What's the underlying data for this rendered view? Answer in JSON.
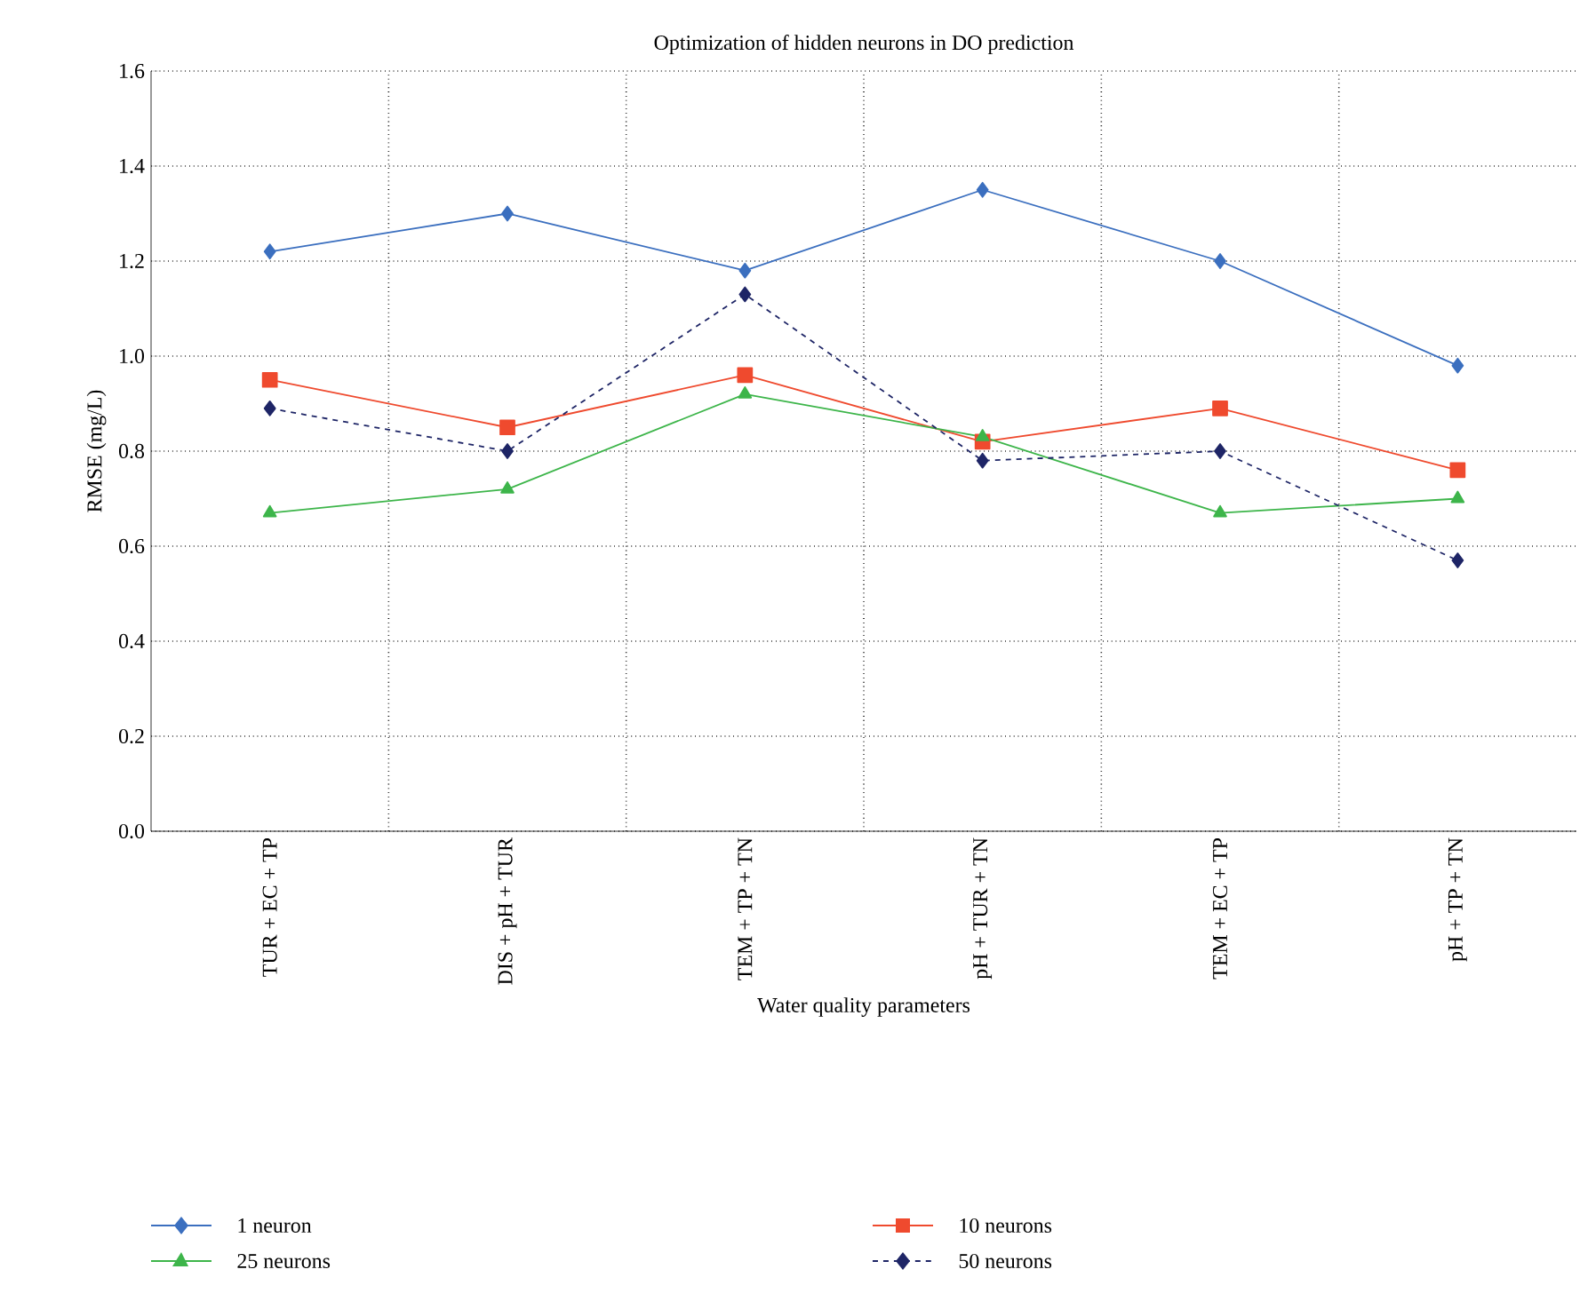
{
  "chart_data": {
    "type": "line",
    "title": "Optimization of hidden neurons in DO prediction",
    "xlabel": "Water quality parameters",
    "ylabel": "RMSE (mg/L)",
    "categories": [
      "TUR + EC + TP",
      "DIS + pH + TUR",
      "TEM + TP + TN",
      "pH + TUR + TN",
      "TEM + EC + TP",
      "pH + TP + TN"
    ],
    "series": [
      {
        "name": "1 neuron",
        "color": "#3b6fbf",
        "marker": "diamond",
        "line_style": "solid",
        "values": [
          1.22,
          1.3,
          1.18,
          1.35,
          1.2,
          0.98
        ]
      },
      {
        "name": "10 neurons",
        "color": "#ef4a2e",
        "marker": "square",
        "line_style": "solid",
        "values": [
          0.95,
          0.85,
          0.96,
          0.82,
          0.89,
          0.76
        ]
      },
      {
        "name": "25 neurons",
        "color": "#3db54a",
        "marker": "triangle",
        "line_style": "solid",
        "values": [
          0.67,
          0.72,
          0.92,
          0.83,
          0.67,
          0.7
        ]
      },
      {
        "name": "50 neurons",
        "color": "#1e2566",
        "marker": "diamond",
        "line_style": "dashed",
        "values": [
          0.89,
          0.8,
          1.13,
          0.78,
          0.8,
          0.57
        ]
      }
    ],
    "ylim": [
      0,
      1.6
    ],
    "yticks": [
      {
        "value": 0,
        "label": "0.0"
      },
      0.2,
      0.4,
      0.6,
      0.8,
      {
        "value": 1,
        "label": "1.0"
      },
      1.2,
      1.4,
      1.6
    ],
    "grid": true,
    "legend": "bottom"
  }
}
